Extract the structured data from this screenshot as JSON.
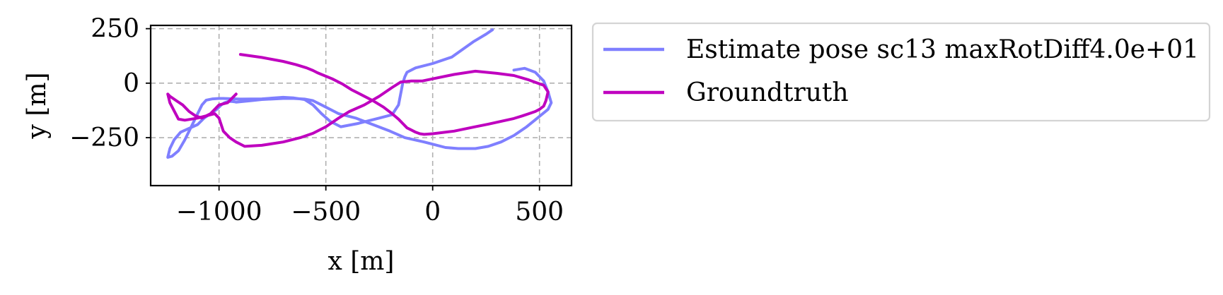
{
  "chart_data": {
    "type": "line",
    "title": "",
    "xlabel": "x [m]",
    "ylabel": "y [m]",
    "xlim": [
      -1320,
      650
    ],
    "ylim": [
      -470,
      265
    ],
    "xticks": [
      -1000,
      -500,
      0,
      500
    ],
    "xtick_labels": [
      "−1000",
      "−500",
      "0",
      "500"
    ],
    "yticks": [
      250,
      0,
      -250
    ],
    "ytick_labels": [
      "250",
      "0",
      "−250"
    ],
    "grid": true,
    "legend_position": "outside-right",
    "series": [
      {
        "name": "Estimate pose sc13 maxRotDiff4.0e+01",
        "color": "#7f7fff",
        "x": [
          280,
          250,
          190,
          90,
          0,
          -80,
          -120,
          -130,
          -140,
          -150,
          -160,
          -190,
          -250,
          -350,
          -430,
          -480,
          -520,
          -560,
          -600,
          -650,
          -700,
          -800,
          -900,
          -980,
          -1000,
          -1030,
          -1060,
          -1080,
          -1100,
          -1130,
          -1160,
          -1190,
          -1220,
          -1240,
          -1230,
          -1210,
          -1180,
          -1100,
          -1070,
          -1040,
          -1010,
          -990,
          -975,
          -960,
          -950,
          -940,
          -930,
          -920,
          -900,
          -850,
          -800,
          -700,
          -650,
          -600,
          -560,
          -520,
          -440,
          -360,
          -280,
          -200,
          -130,
          -40,
          0,
          60,
          120,
          200,
          260,
          320,
          380,
          440,
          490,
          540,
          555,
          540,
          520,
          480,
          430,
          380
        ],
        "y": [
          245,
          225,
          190,
          120,
          90,
          70,
          50,
          30,
          0,
          -50,
          -100,
          -145,
          -160,
          -185,
          -200,
          -175,
          -140,
          -100,
          -75,
          -68,
          -65,
          -72,
          -73,
          -70,
          -70,
          -72,
          -78,
          -100,
          -140,
          -200,
          -260,
          -310,
          -335,
          -340,
          -300,
          -260,
          -225,
          -190,
          -160,
          -140,
          -120,
          -100,
          -90,
          -85,
          -84,
          -84,
          -85,
          -87,
          -85,
          -80,
          -75,
          -70,
          -70,
          -73,
          -80,
          -100,
          -140,
          -160,
          -190,
          -220,
          -250,
          -270,
          -280,
          -295,
          -300,
          -300,
          -290,
          -270,
          -240,
          -200,
          -160,
          -120,
          -90,
          -40,
          10,
          50,
          68,
          60
        ]
      },
      {
        "name": "Groundtruth",
        "color": "#bf00bf",
        "x": [
          -900,
          -800,
          -700,
          -640,
          -590,
          -560,
          -540,
          -520,
          -470,
          -420,
          -380,
          -330,
          -280,
          -230,
          -190,
          -160,
          -140,
          -120,
          -100,
          -80,
          -60,
          -40,
          0,
          100,
          150,
          200,
          260,
          320,
          380,
          420,
          450,
          480,
          500,
          520,
          530,
          540,
          520,
          450,
          380,
          300,
          200,
          100,
          0,
          -50,
          -100,
          -150,
          -190,
          -250,
          -320,
          -390,
          -440,
          -500,
          -560,
          -620,
          -700,
          -800,
          -880,
          -920,
          -950,
          -980,
          -1000,
          -1020,
          -1040,
          -1060,
          -1080,
          -1100,
          -1130,
          -1160,
          -1190,
          -1230,
          -1240,
          -1230,
          -1200,
          -1170,
          -1140,
          -1110,
          -1080,
          -1060,
          -1040,
          -1020,
          -1000,
          -960,
          -920
        ],
        "y": [
          132,
          118,
          100,
          85,
          70,
          58,
          48,
          40,
          20,
          -5,
          -30,
          -55,
          -80,
          -110,
          -140,
          -165,
          -185,
          -205,
          -215,
          -225,
          -232,
          -235,
          -232,
          -220,
          -210,
          -200,
          -188,
          -175,
          -162,
          -150,
          -140,
          -130,
          -120,
          -105,
          -80,
          -40,
          -10,
          15,
          35,
          45,
          55,
          40,
          20,
          10,
          10,
          5,
          -20,
          -60,
          -100,
          -130,
          -160,
          -200,
          -230,
          -250,
          -270,
          -285,
          -290,
          -270,
          -250,
          -220,
          -160,
          -140,
          -145,
          -150,
          -155,
          -160,
          -165,
          -170,
          -165,
          -90,
          -50,
          -60,
          -80,
          -100,
          -130,
          -150,
          -160,
          -150,
          -140,
          -120,
          -100,
          -90,
          -50
        ]
      }
    ]
  }
}
